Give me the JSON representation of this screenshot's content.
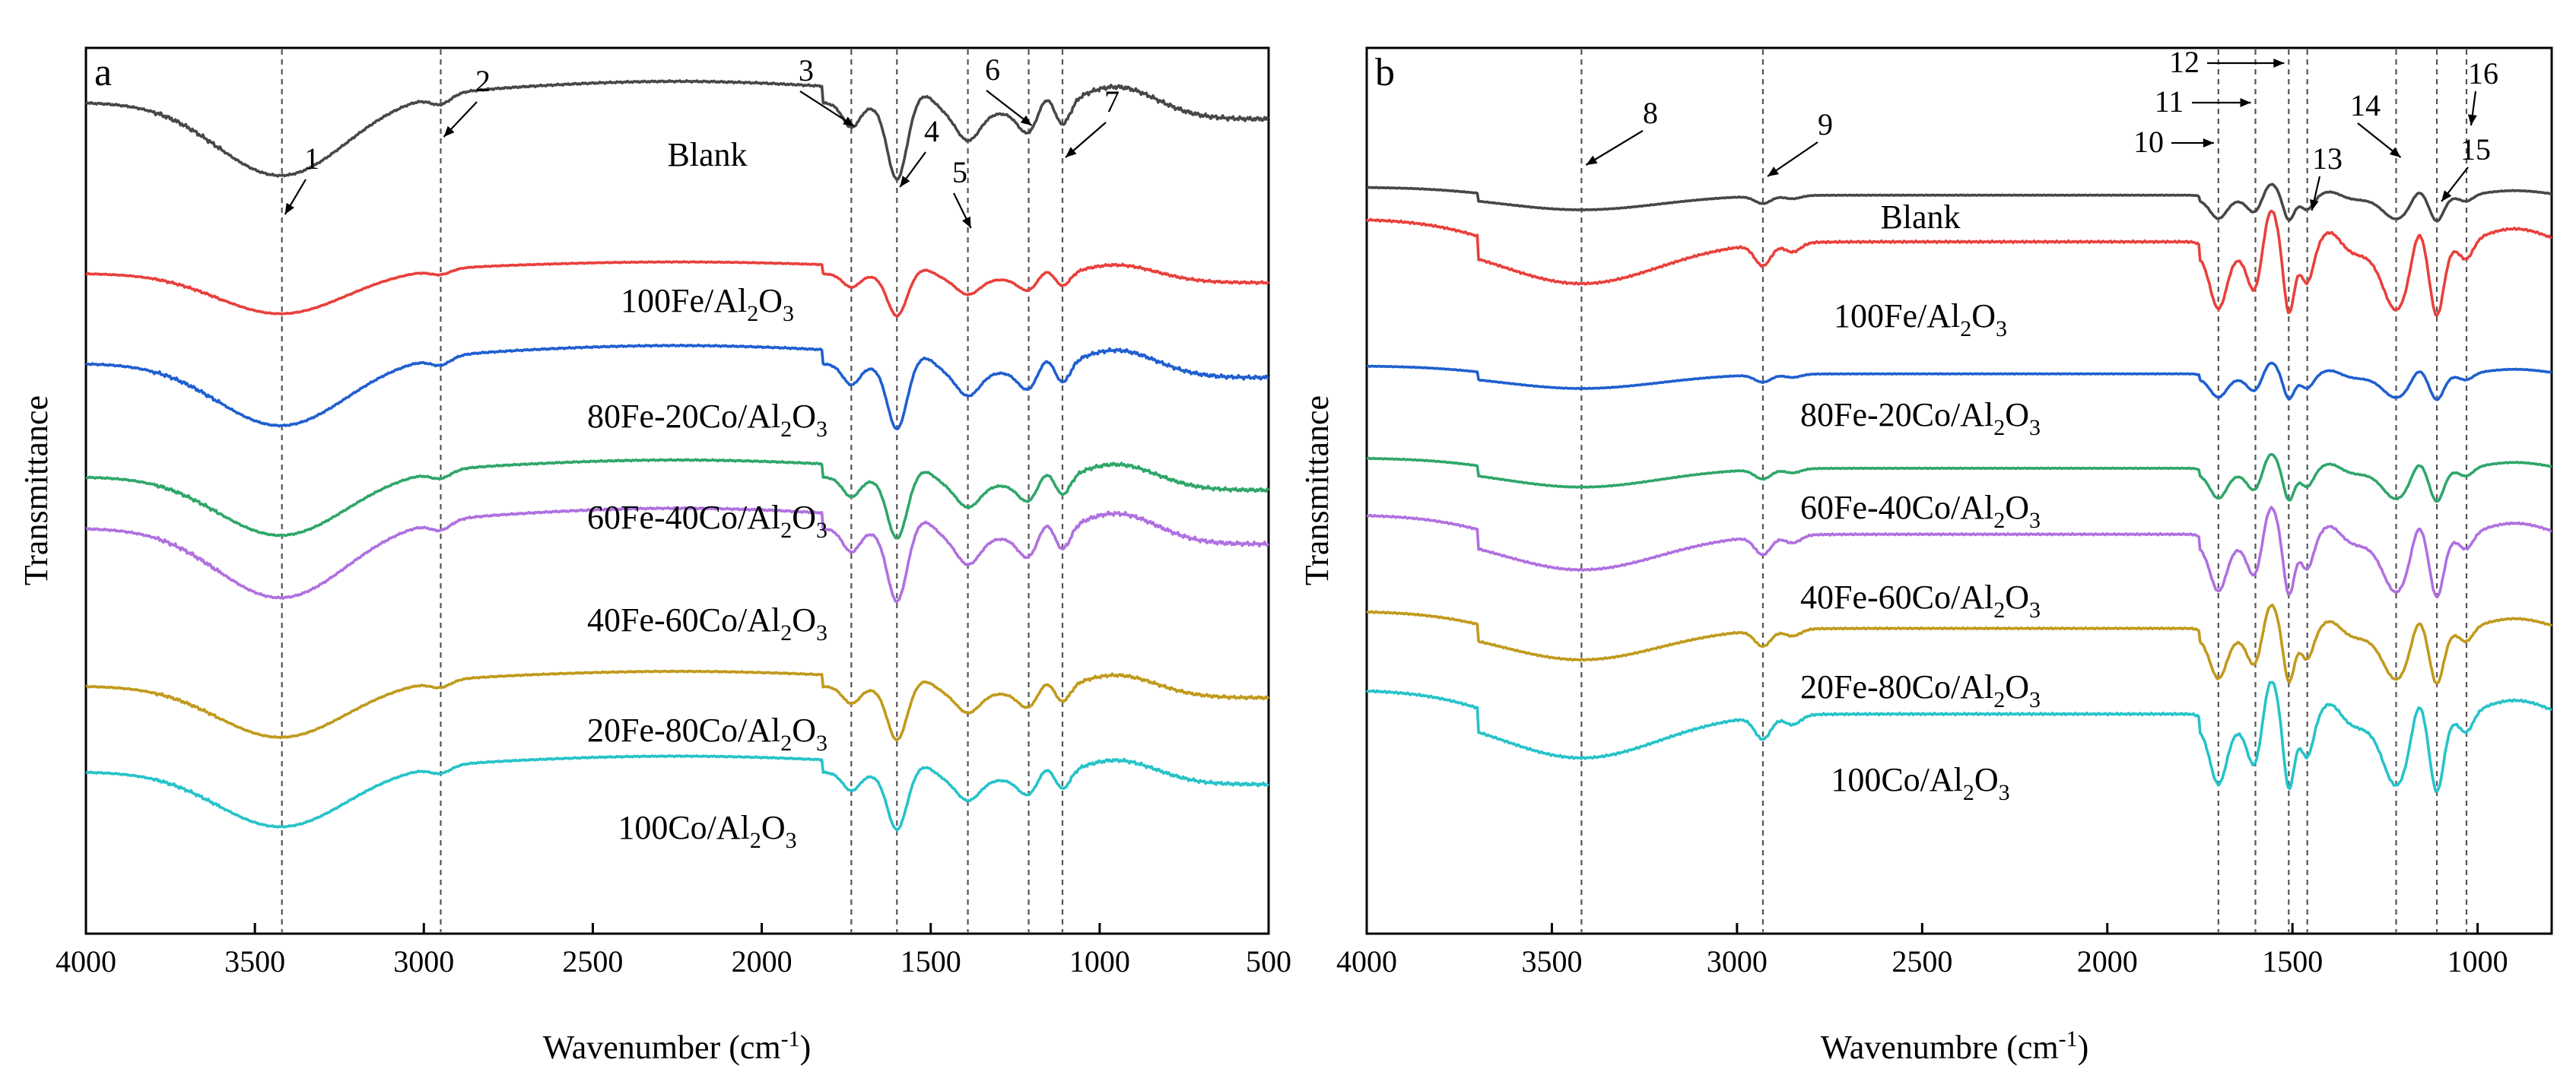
{
  "chart_data": [
    {
      "type": "line",
      "panel_label": "a",
      "xlabel": "Wavenumber (cm",
      "xlabel_sup": "-1",
      "xlabel_tail": ")",
      "ylabel": "Transmittance",
      "xlim": [
        4000,
        500
      ],
      "xticks": [
        "4000",
        "3500",
        "3000",
        "2500",
        "2000",
        "1500",
        "1000",
        "500"
      ],
      "ref_lines": [
        3420,
        2950,
        1735,
        1600,
        1390,
        1210,
        1110
      ],
      "peaks": [
        {
          "label": "1",
          "x": 3420
        },
        {
          "label": "2",
          "x": 2950
        },
        {
          "label": "3",
          "x": 1735
        },
        {
          "label": "4",
          "x": 1600
        },
        {
          "label": "5",
          "x": 1390
        },
        {
          "label": "6",
          "x": 1210
        },
        {
          "label": "7",
          "x": 1110
        }
      ],
      "series": [
        {
          "name": "Blank",
          "base": "Al",
          "sub": "",
          "tail": "",
          "color": "#474747",
          "amp": 1.0
        },
        {
          "name": "100Fe/Al",
          "base": "100Fe/Al",
          "sub": "2",
          "tail": "O",
          "sub2": "3",
          "color": "#e8403c",
          "amp": 0.55
        },
        {
          "name": "80Fe-20Co/Al",
          "base": "80Fe-20Co/Al",
          "sub": "2",
          "tail": "O",
          "sub2": "3",
          "color": "#1f5fd0",
          "amp": 0.85
        },
        {
          "name": "60Fe-40Co/Al",
          "base": "60Fe-40Co/Al",
          "sub": "2",
          "tail": "O",
          "sub2": "3",
          "color": "#2fa66a",
          "amp": 0.8
        },
        {
          "name": "40Fe-60Co/Al",
          "base": "40Fe-60Co/Al",
          "sub": "2",
          "tail": "O",
          "sub2": "3",
          "color": "#b070e0",
          "amp": 0.95
        },
        {
          "name": "20Fe-80Co/Al",
          "base": "20Fe-80Co/Al",
          "sub": "2",
          "tail": "O",
          "sub2": "3",
          "color": "#c19a1c",
          "amp": 0.7
        },
        {
          "name": "100Co/Al",
          "base": "100Co/Al",
          "sub": "2",
          "tail": "O",
          "sub2": "3",
          "color": "#26c3c8",
          "amp": 0.75
        }
      ],
      "series_labels": [
        "Blank",
        "100Fe/Al",
        "80Fe-20Co/Al",
        "60Fe-40Co/Al",
        "40Fe-60Co/Al",
        "20Fe-80Co/Al",
        "100Co/Al"
      ]
    },
    {
      "type": "line",
      "panel_label": "b",
      "xlabel": "Wavenumbre (cm",
      "xlabel_sup": "-1",
      "xlabel_tail": ")",
      "ylabel": "Transmittance",
      "xlim": [
        4000,
        800
      ],
      "xticks": [
        "4000",
        "3500",
        "3000",
        "2500",
        "2000",
        "1500",
        "1000"
      ],
      "ref_lines": [
        3420,
        2930,
        1700,
        1600,
        1510,
        1460,
        1220,
        1110,
        1030
      ],
      "peaks": [
        {
          "label": "8",
          "x": 3420
        },
        {
          "label": "9",
          "x": 2930
        },
        {
          "label": "10",
          "x": 1700
        },
        {
          "label": "11",
          "x": 1600
        },
        {
          "label": "12",
          "x": 1510
        },
        {
          "label": "13",
          "x": 1460
        },
        {
          "label": "14",
          "x": 1220
        },
        {
          "label": "15",
          "x": 1110
        },
        {
          "label": "16",
          "x": 1030
        }
      ],
      "series": [
        {
          "name": "Blank",
          "color": "#474747",
          "amp": 0.35
        },
        {
          "name": "100Fe/Al",
          "color": "#e8403c",
          "amp": 1.0
        },
        {
          "name": "80Fe-20Co/Al",
          "color": "#1f5fd0",
          "amp": 0.35
        },
        {
          "name": "60Fe-40Co/Al",
          "color": "#2fa66a",
          "amp": 0.45
        },
        {
          "name": "40Fe-60Co/Al",
          "color": "#b070e0",
          "amp": 0.85
        },
        {
          "name": "20Fe-80Co/Al",
          "color": "#c19a1c",
          "amp": 0.75
        },
        {
          "name": "100Co/Al",
          "color": "#26c3c8",
          "amp": 1.05
        }
      ],
      "series_labels": [
        "Blank",
        "100Fe/Al",
        "80Fe-20Co/Al",
        "60Fe-40Co/Al",
        "40Fe-60Co/Al",
        "20Fe-80Co/Al",
        "100Co/Al"
      ]
    }
  ],
  "formula_suffix": {
    "sub1": "2",
    "mid": "O",
    "sub2": "3"
  }
}
